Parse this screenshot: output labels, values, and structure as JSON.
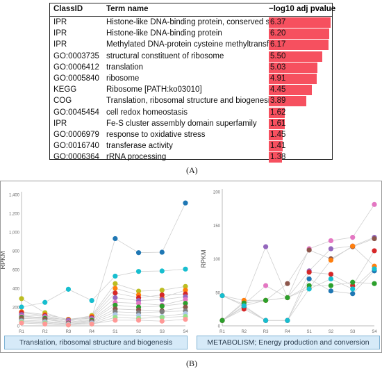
{
  "panelA": {
    "label": "(A)",
    "headers": {
      "classid": "ClassID",
      "term": "Term name",
      "pvalue": "−log10 adj pvalue"
    },
    "rows": [
      {
        "classid": "IPR",
        "term": "Histone-like DNA-binding protein, conserved site",
        "value": "6.37"
      },
      {
        "classid": "IPR",
        "term": "Histone-like DNA-binding protein",
        "value": "6.20"
      },
      {
        "classid": "IPR",
        "term": "Methylated DNA-protein cysteine methyltransferase",
        "value": "6.17"
      },
      {
        "classid": "GO:0003735",
        "term": "structural constituent of ribosome",
        "value": "5.50"
      },
      {
        "classid": "GO:0006412",
        "term": "translation",
        "value": "5.03"
      },
      {
        "classid": "GO:0005840",
        "term": "ribosome",
        "value": "4.91"
      },
      {
        "classid": "KEGG",
        "term": "Ribosome [PATH:ko03010]",
        "value": "4.45"
      },
      {
        "classid": "COG",
        "term": "Translation, ribosomal structure and biogenesis",
        "value": "3.89"
      },
      {
        "classid": "GO:0045454",
        "term": "cell redox homeostasis",
        "value": "1.62"
      },
      {
        "classid": "IPR",
        "term": "Fe-S cluster assembly domain superfamily",
        "value": "1.61"
      },
      {
        "classid": "GO:0006979",
        "term": "response to oxidative stress",
        "value": "1.45"
      },
      {
        "classid": "GO:0016740",
        "term": "transferase activity",
        "value": "1.41"
      },
      {
        "classid": "GO:0006364",
        "term": "rRNA processing",
        "value": "1.38"
      }
    ],
    "bar_color": "#f6505f"
  },
  "panelB": {
    "label": "(B)",
    "left": {
      "caption": "Translation, ribosomal structure and biogenesis"
    },
    "right": {
      "caption": "METABOLISM; Energy production and conversion"
    }
  },
  "chart_data": [
    {
      "type": "bar",
      "categories": [
        "Histone-like DNA-binding protein, conserved site",
        "Histone-like DNA-binding protein",
        "Methylated DNA-protein cysteine methyltransferase",
        "structural constituent of ribosome",
        "translation",
        "ribosome",
        "Ribosome [PATH:ko03010]",
        "Translation, ribosomal structure and biogenesis",
        "cell redox homeostasis",
        "Fe-S cluster assembly domain superfamily",
        "response to oxidative stress",
        "transferase activity",
        "rRNA processing"
      ],
      "values": [
        6.37,
        6.2,
        6.17,
        5.5,
        5.03,
        4.91,
        4.45,
        3.89,
        1.62,
        1.61,
        1.45,
        1.41,
        1.38
      ],
      "ylabel": "−log10 adj pvalue",
      "ylim": [
        0,
        6.37
      ]
    },
    {
      "type": "line",
      "x": [
        "R1",
        "R2",
        "R3",
        "R4",
        "S1",
        "S2",
        "S3",
        "S4"
      ],
      "ylabel": "RPKM",
      "ylim": [
        0,
        1400
      ],
      "yticks": [
        "0",
        "200",
        "400",
        "600",
        "800",
        "1,000",
        "1,200",
        "1,400"
      ],
      "grid": false,
      "series": [
        {
          "color": "#1f77b4",
          "values": [
            110,
            80,
            70,
            90,
            930,
            780,
            785,
            1310
          ]
        },
        {
          "color": "#17becf",
          "values": [
            200,
            250,
            390,
            270,
            530,
            580,
            585,
            605
          ]
        },
        {
          "color": "#bcbd22",
          "values": [
            290,
            140,
            60,
            110,
            450,
            370,
            380,
            420
          ]
        },
        {
          "color": "#ff7f0e",
          "values": [
            150,
            120,
            70,
            100,
            400,
            330,
            300,
            380
          ]
        },
        {
          "color": "#d62728",
          "values": [
            140,
            110,
            50,
            90,
            350,
            300,
            330,
            340
          ]
        },
        {
          "color": "#9467bd",
          "values": [
            120,
            100,
            60,
            80,
            300,
            270,
            280,
            310
          ]
        },
        {
          "color": "#e377c2",
          "values": [
            100,
            90,
            40,
            70,
            250,
            240,
            220,
            280
          ]
        },
        {
          "color": "#2ca02c",
          "values": [
            90,
            80,
            30,
            60,
            220,
            200,
            210,
            240
          ]
        },
        {
          "color": "#8c564b",
          "values": [
            80,
            70,
            30,
            50,
            180,
            170,
            160,
            200
          ]
        },
        {
          "color": "#7f7f7f",
          "values": [
            60,
            50,
            20,
            40,
            150,
            140,
            150,
            160
          ]
        },
        {
          "color": "#aec7e8",
          "values": [
            50,
            40,
            20,
            30,
            120,
            110,
            100,
            130
          ]
        },
        {
          "color": "#98df8a",
          "values": [
            40,
            30,
            10,
            20,
            90,
            80,
            90,
            100
          ]
        },
        {
          "color": "#ff9896",
          "values": [
            30,
            20,
            10,
            20,
            60,
            60,
            50,
            70
          ]
        }
      ]
    },
    {
      "type": "line",
      "x": [
        "R1",
        "R2",
        "R3",
        "R4",
        "S1",
        "S2",
        "S3",
        "S4"
      ],
      "ylabel": "RPKM",
      "ylim": [
        0,
        200
      ],
      "yticks": [
        "0",
        "50",
        "100",
        "150",
        "200"
      ],
      "grid": false,
      "series": [
        {
          "color": "#e377c2",
          "values": [
            45,
            32,
            60,
            42,
            115,
            127,
            132,
            181
          ]
        },
        {
          "color": "#9467bd",
          "values": [
            8,
            36,
            118,
            42,
            82,
            115,
            119,
            132
          ]
        },
        {
          "color": "#8c564b",
          "values": [
            8,
            30,
            38,
            63,
            113,
            100,
            118,
            130
          ]
        },
        {
          "color": "#1f77b4",
          "values": [
            8,
            28,
            8,
            8,
            70,
            52,
            48,
            82
          ]
        },
        {
          "color": "#d62728",
          "values": [
            8,
            25,
            8,
            8,
            80,
            77,
            60,
            112
          ]
        },
        {
          "color": "#ff7f0e",
          "values": [
            45,
            38,
            38,
            42,
            56,
            98,
            119,
            89
          ]
        },
        {
          "color": "#2ca02c",
          "values": [
            8,
            34,
            38,
            42,
            60,
            60,
            65,
            63
          ]
        },
        {
          "color": "#17becf",
          "values": [
            45,
            30,
            8,
            8,
            55,
            70,
            55,
            85
          ]
        }
      ]
    }
  ]
}
